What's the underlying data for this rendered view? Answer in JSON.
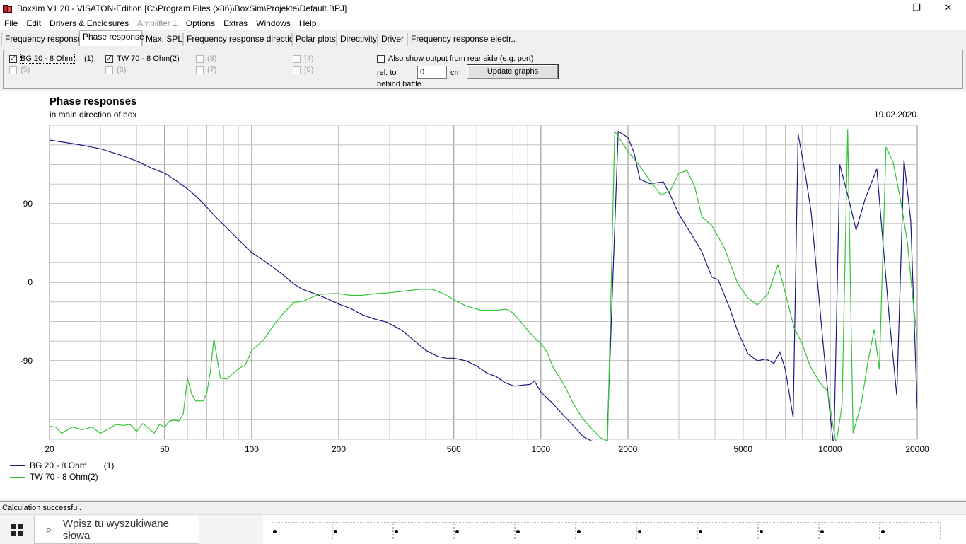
{
  "window": {
    "title": "Boxsim V1.20 - VISATON-Edition [C:\\Program Files (x86)\\BoxSim\\Projekte\\Default.BPJ]",
    "min_glyph": "—",
    "max_glyph": "❐",
    "close_glyph": "✕"
  },
  "menu": [
    {
      "label": "File",
      "enabled": true
    },
    {
      "label": "Edit",
      "enabled": true
    },
    {
      "label": "Drivers & Enclosures",
      "enabled": true
    },
    {
      "label": "Amplifier 1",
      "enabled": false
    },
    {
      "label": "Options",
      "enabled": true
    },
    {
      "label": "Extras",
      "enabled": true
    },
    {
      "label": "Windows",
      "enabled": true
    },
    {
      "label": "Help",
      "enabled": true
    }
  ],
  "tabs": [
    {
      "label": "Frequency response.",
      "active": false
    },
    {
      "label": "Phase response",
      "active": true
    },
    {
      "label": "Max. SPL",
      "active": false
    },
    {
      "label": "Frequency response directions",
      "active": false
    },
    {
      "label": "Polar plots",
      "active": false
    },
    {
      "label": "Directivity",
      "active": false
    },
    {
      "label": "Driver",
      "active": false
    },
    {
      "label": "Frequency response electr..",
      "active": false
    }
  ],
  "drivers": [
    {
      "label": "BG 20 - 8 Ohm",
      "num": "(1)",
      "checked": true,
      "enabled": true
    },
    {
      "label": "TW 70 - 8 Ohm(2)",
      "num": "",
      "checked": true,
      "enabled": true
    },
    {
      "label": "(3)",
      "num": "",
      "checked": false,
      "enabled": false
    },
    {
      "label": "(4)",
      "num": "",
      "checked": false,
      "enabled": false
    },
    {
      "label": "(5)",
      "num": "",
      "checked": false,
      "enabled": false
    },
    {
      "label": "(6)",
      "num": "",
      "checked": false,
      "enabled": false
    },
    {
      "label": "(7)",
      "num": "",
      "checked": false,
      "enabled": false
    },
    {
      "label": "(8)",
      "num": "",
      "checked": false,
      "enabled": false
    }
  ],
  "options": {
    "rear_label": "Also show output from rear side (e.g. port)",
    "rear_checked": false,
    "relto_label": "rel. to",
    "relto_value": "0",
    "relto_unit": "cm",
    "behind_label": "behind baffle",
    "update_button": "Update graphs"
  },
  "chart_data": {
    "type": "line",
    "title": "Phase responses",
    "subtitle": "in main direction of box",
    "date": "19.02.2020",
    "xscale": "log",
    "xlim": [
      20,
      20000
    ],
    "ylim": [
      -180,
      180
    ],
    "xticks": [
      20,
      50,
      100,
      200,
      500,
      1000,
      2000,
      5000,
      10000,
      20000
    ],
    "yticks": [
      90,
      0,
      -90
    ],
    "grid": true,
    "legend_position": "bottom-left",
    "series": [
      {
        "name": "BG 20 - 8 Ohm",
        "legend_num": "(1)",
        "color": "#1a1a80",
        "points": [
          [
            20,
            163
          ],
          [
            25,
            158
          ],
          [
            30,
            153
          ],
          [
            35,
            146
          ],
          [
            40,
            139
          ],
          [
            45,
            131
          ],
          [
            50,
            125
          ],
          [
            55,
            116
          ],
          [
            60,
            107
          ],
          [
            65,
            97
          ],
          [
            70,
            86
          ],
          [
            75,
            75
          ],
          [
            80,
            66
          ],
          [
            90,
            49
          ],
          [
            100,
            34
          ],
          [
            110,
            25
          ],
          [
            120,
            16
          ],
          [
            130,
            7
          ],
          [
            140,
            -2
          ],
          [
            150,
            -8
          ],
          [
            165,
            -13
          ],
          [
            180,
            -18
          ],
          [
            200,
            -25
          ],
          [
            220,
            -30
          ],
          [
            240,
            -37
          ],
          [
            265,
            -42
          ],
          [
            295,
            -46
          ],
          [
            330,
            -55
          ],
          [
            365,
            -67
          ],
          [
            400,
            -78
          ],
          [
            440,
            -85
          ],
          [
            470,
            -87
          ],
          [
            500,
            -87
          ],
          [
            550,
            -90
          ],
          [
            600,
            -96
          ],
          [
            650,
            -104
          ],
          [
            700,
            -108
          ],
          [
            750,
            -115
          ],
          [
            810,
            -119
          ],
          [
            860,
            -118
          ],
          [
            920,
            -117
          ],
          [
            950,
            -113
          ],
          [
            1000,
            -126
          ],
          [
            1100,
            -139
          ],
          [
            1200,
            -153
          ],
          [
            1300,
            -165
          ],
          [
            1400,
            -177
          ],
          [
            1500,
            -182
          ],
          [
            1600,
            -183
          ],
          [
            1690,
            -188
          ],
          [
            1850,
            173
          ],
          [
            2000,
            166
          ],
          [
            2100,
            148
          ],
          [
            2200,
            118
          ],
          [
            2380,
            113
          ],
          [
            2650,
            115
          ],
          [
            2800,
            100
          ],
          [
            3000,
            78
          ],
          [
            3300,
            56
          ],
          [
            3600,
            35
          ],
          [
            3900,
            6
          ],
          [
            4100,
            3
          ],
          [
            4500,
            -30
          ],
          [
            4800,
            -57
          ],
          [
            5200,
            -82
          ],
          [
            5600,
            -90
          ],
          [
            6000,
            -88
          ],
          [
            6400,
            -93
          ],
          [
            6700,
            -80
          ],
          [
            7000,
            -100
          ],
          [
            7450,
            -155
          ],
          [
            7750,
            170
          ],
          [
            8200,
            125
          ],
          [
            8600,
            80
          ],
          [
            9000,
            8
          ],
          [
            9500,
            -78
          ],
          [
            10000,
            -152
          ],
          [
            10300,
            -190
          ],
          [
            10800,
            135
          ],
          [
            11500,
            100
          ],
          [
            12300,
            60
          ],
          [
            13200,
            95
          ],
          [
            14500,
            130
          ],
          [
            16000,
            -40
          ],
          [
            17000,
            -130
          ],
          [
            18000,
            140
          ],
          [
            19000,
            70
          ],
          [
            20000,
            -145
          ]
        ]
      },
      {
        "name": "TW 70 - 8 Ohm(2)",
        "legend_num": "",
        "color": "#33c433",
        "points": [
          [
            20,
            -165
          ],
          [
            21,
            -166
          ],
          [
            22,
            -173
          ],
          [
            24,
            -166
          ],
          [
            26,
            -169
          ],
          [
            28,
            -166
          ],
          [
            30,
            -173
          ],
          [
            32,
            -168
          ],
          [
            34,
            -163
          ],
          [
            36,
            -164
          ],
          [
            38,
            -163
          ],
          [
            40,
            -171
          ],
          [
            42,
            -162
          ],
          [
            44,
            -167
          ],
          [
            46,
            -173
          ],
          [
            48,
            -163
          ],
          [
            50,
            -166
          ],
          [
            52,
            -159
          ],
          [
            54,
            -158
          ],
          [
            56,
            -159
          ],
          [
            58,
            -151
          ],
          [
            60,
            -110
          ],
          [
            62,
            -128
          ],
          [
            64,
            -136
          ],
          [
            68,
            -136
          ],
          [
            70,
            -127
          ],
          [
            72,
            -102
          ],
          [
            74,
            -65
          ],
          [
            78,
            -110
          ],
          [
            82,
            -111
          ],
          [
            90,
            -99
          ],
          [
            95,
            -95
          ],
          [
            100,
            -78
          ],
          [
            110,
            -66
          ],
          [
            120,
            -48
          ],
          [
            130,
            -34
          ],
          [
            140,
            -23
          ],
          [
            150,
            -22
          ],
          [
            170,
            -14
          ],
          [
            190,
            -13
          ],
          [
            200,
            -13
          ],
          [
            220,
            -15
          ],
          [
            240,
            -15
          ],
          [
            270,
            -13
          ],
          [
            300,
            -12
          ],
          [
            340,
            -10
          ],
          [
            380,
            -8
          ],
          [
            420,
            -8
          ],
          [
            460,
            -13
          ],
          [
            500,
            -20
          ],
          [
            550,
            -27
          ],
          [
            620,
            -32
          ],
          [
            700,
            -32
          ],
          [
            760,
            -31
          ],
          [
            800,
            -35
          ],
          [
            850,
            -45
          ],
          [
            900,
            -55
          ],
          [
            960,
            -65
          ],
          [
            1000,
            -70
          ],
          [
            1050,
            -80
          ],
          [
            1100,
            -97
          ],
          [
            1200,
            -117
          ],
          [
            1300,
            -140
          ],
          [
            1400,
            -157
          ],
          [
            1500,
            -168
          ],
          [
            1600,
            -178
          ],
          [
            1700,
            -182
          ],
          [
            1800,
            173
          ],
          [
            2000,
            150
          ],
          [
            2200,
            133
          ],
          [
            2400,
            115
          ],
          [
            2600,
            100
          ],
          [
            2800,
            105
          ],
          [
            3000,
            125
          ],
          [
            3200,
            128
          ],
          [
            3400,
            110
          ],
          [
            3600,
            75
          ],
          [
            3900,
            65
          ],
          [
            4300,
            40
          ],
          [
            4800,
            -2
          ],
          [
            5200,
            -18
          ],
          [
            5600,
            -26
          ],
          [
            6100,
            -13
          ],
          [
            6600,
            20
          ],
          [
            7000,
            -12
          ],
          [
            7500,
            -52
          ],
          [
            8000,
            -70
          ],
          [
            8500,
            -95
          ],
          [
            9200,
            -115
          ],
          [
            9800,
            -125
          ],
          [
            10300,
            -170
          ],
          [
            10500,
            -185
          ],
          [
            11000,
            -140
          ],
          [
            11500,
            175
          ],
          [
            12000,
            -173
          ],
          [
            12800,
            -140
          ],
          [
            13500,
            -92
          ],
          [
            14200,
            -54
          ],
          [
            14800,
            -100
          ],
          [
            15600,
            155
          ],
          [
            16500,
            138
          ],
          [
            17500,
            95
          ],
          [
            18500,
            45
          ],
          [
            19300,
            -18
          ],
          [
            20000,
            -65
          ]
        ]
      }
    ]
  },
  "status": {
    "text": "Calculation successful."
  },
  "taskbar": {
    "search_placeholder": "Wpisz tu wyszukiwane słowa"
  }
}
